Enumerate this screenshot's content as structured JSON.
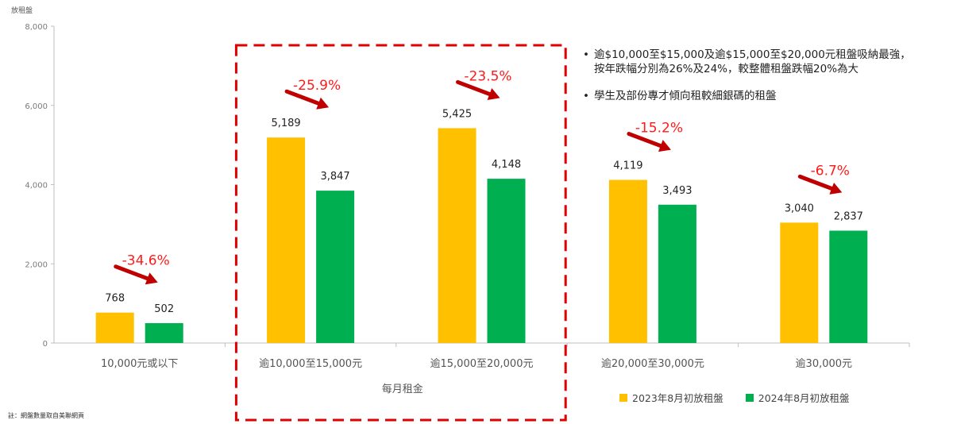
{
  "chart_data": {
    "type": "bar",
    "ylabel": "放租盤",
    "xlabel": "每月租金",
    "ylim": [
      0,
      8000
    ],
    "yticks": [
      0,
      2000,
      4000,
      6000,
      8000
    ],
    "ytick_labels": [
      "0",
      "2,000",
      "4,000",
      "6,000",
      "8,000"
    ],
    "categories": [
      "10,000元或以下",
      "逾10,000至15,000元",
      "逾15,000至20,000元",
      "逾20,000至30,000元",
      "逾30,000元"
    ],
    "series": [
      {
        "name": "2023年8月初放租盤",
        "values": [
          768,
          5189,
          5425,
          4119,
          3040
        ],
        "value_labels": [
          "768",
          "5,189",
          "5,425",
          "4,119",
          "3,040"
        ],
        "color": "#FFC000"
      },
      {
        "name": "2024年8月初放租盤",
        "values": [
          502,
          3847,
          4148,
          3493,
          2837
        ],
        "value_labels": [
          "502",
          "3,847",
          "4,148",
          "3,493",
          "2,837"
        ],
        "color": "#00B050"
      }
    ],
    "annotations": [
      "-34.6%",
      "-25.9%",
      "-23.5%",
      "-15.2%",
      "-6.7%"
    ],
    "highlight_categories": [
      1,
      2
    ],
    "grid": false,
    "legend_position": "bottom-right"
  },
  "notes": [
    "逾$10,000至$15,000及逾$15,000至$20,000元租盤吸納最強，按年跌幅分別為26%及24%，較整體租盤跌幅20%為大",
    "學生及部份專才傾向租較細銀碼的租盤"
  ],
  "bullet": "•",
  "footnote": "註：網盤數量取自美聯網頁",
  "colors": {
    "arrow": "#C00000",
    "annotation": "#FF1A1A",
    "highlight_box": "#E00000"
  }
}
